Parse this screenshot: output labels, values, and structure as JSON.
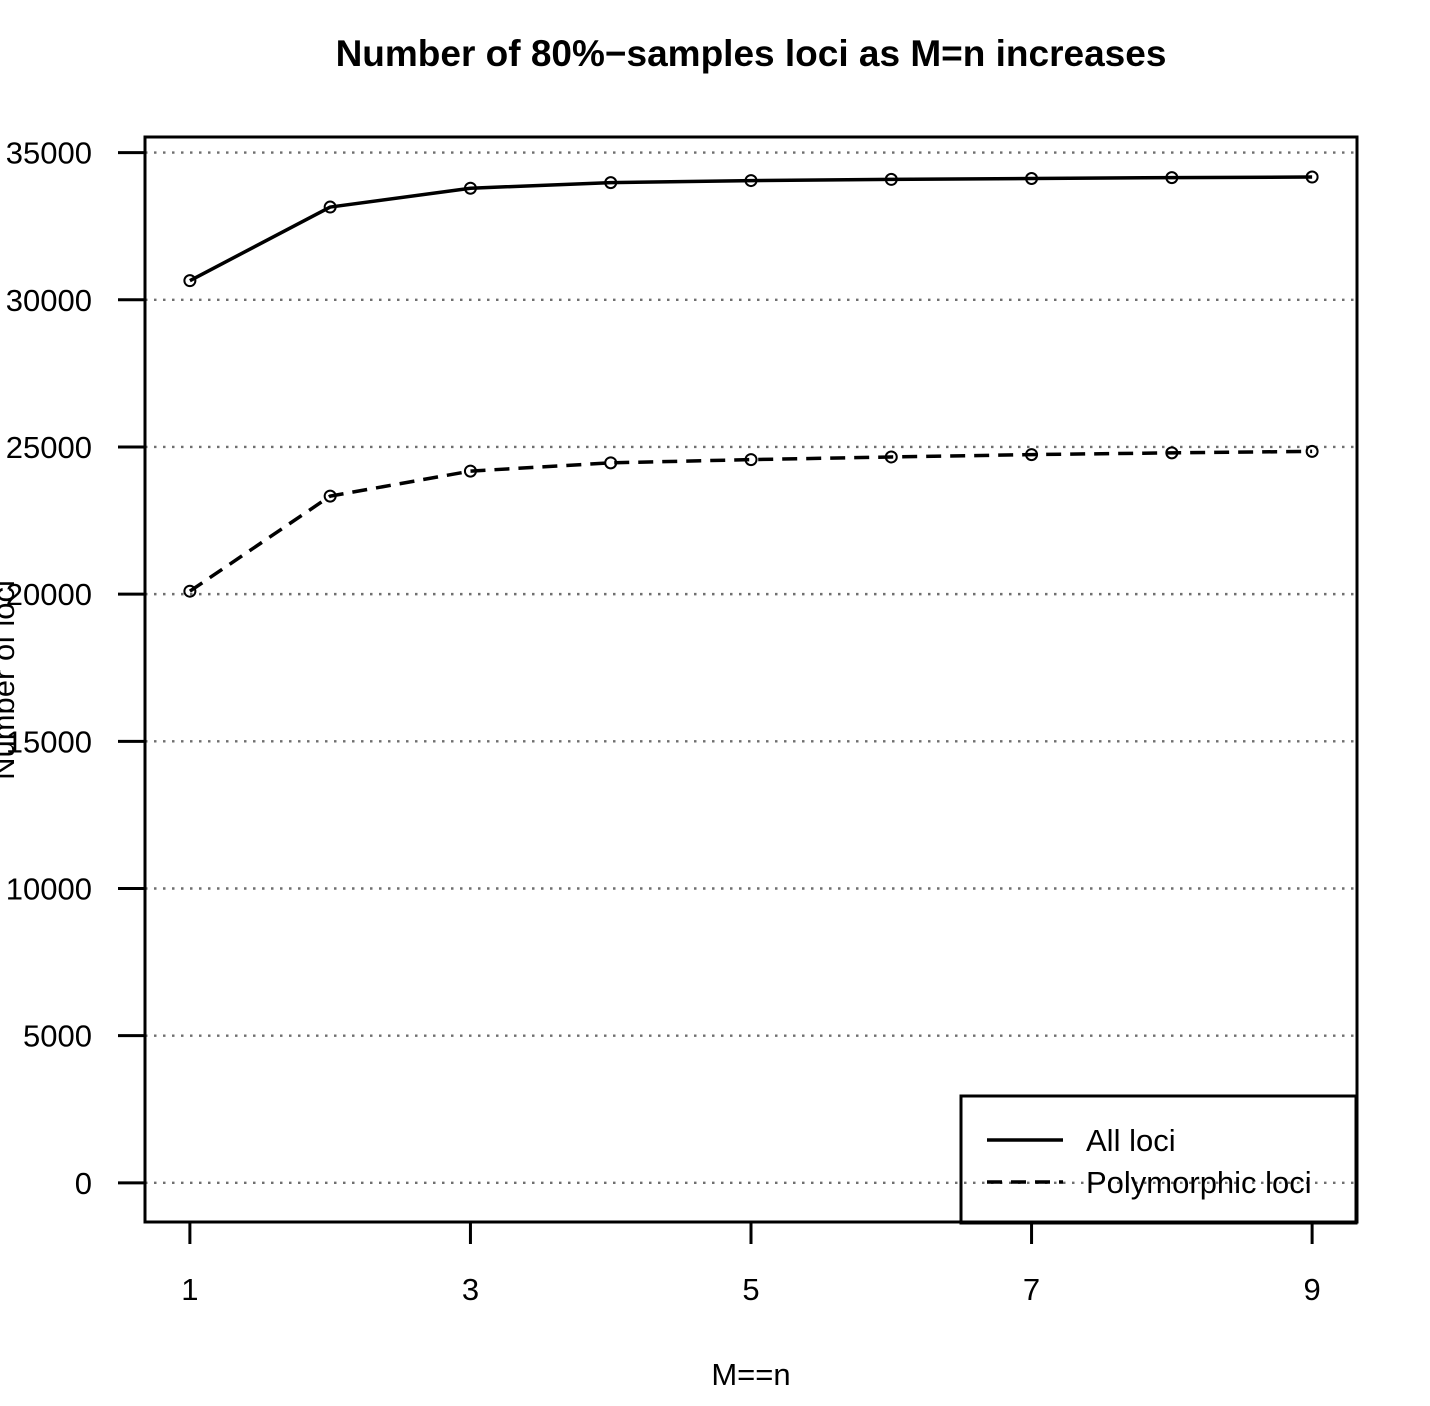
{
  "title": "Number of 80%−samples loci as M=n increases",
  "chart_data": {
    "type": "line",
    "title": "Number of 80%−samples loci as M=n increases",
    "xlabel": "M==n",
    "ylabel": "Number of loci",
    "x": [
      1,
      2,
      3,
      4,
      5,
      6,
      7,
      8,
      9
    ],
    "series": [
      {
        "name": "All loci",
        "style": "solid",
        "marker": "open-circle",
        "values": [
          30650,
          33150,
          33790,
          33980,
          34050,
          34090,
          34120,
          34150,
          34170
        ]
      },
      {
        "name": "Polymorphic loci",
        "style": "dashed",
        "marker": "open-circle",
        "values": [
          20100,
          23330,
          24180,
          24460,
          24570,
          24660,
          24740,
          24800,
          24850
        ]
      }
    ],
    "x_ticks": [
      1,
      3,
      5,
      7,
      9
    ],
    "y_ticks": [
      0,
      5000,
      10000,
      15000,
      20000,
      25000,
      30000,
      35000
    ],
    "xlim": [
      0.68,
      9.32
    ],
    "ylim": [
      -1330,
      35530
    ],
    "grid": "horizontal-dotted",
    "legend_position": "bottom-right",
    "colors": {
      "line": "#000000",
      "grid": "#6f6f6f",
      "background": "#ffffff",
      "text": "#000000"
    }
  },
  "legend": {
    "items": [
      {
        "label": "All loci",
        "line": "solid"
      },
      {
        "label": "Polymorphic loci",
        "line": "dashed"
      }
    ]
  }
}
